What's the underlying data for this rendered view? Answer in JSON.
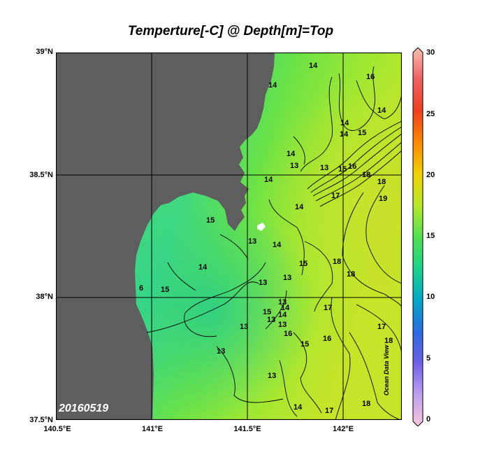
{
  "title": "Temperture[-C] @ Depth[m]=Top",
  "date_label": "20160519",
  "watermark": "Ocean Data View",
  "lat_ticks": [
    "39°N",
    "38.5°N",
    "38°N",
    "37.5°N"
  ],
  "lon_ticks": [
    "140.5°E",
    "141°E",
    "141.5°E",
    "142°E"
  ],
  "colorbar": {
    "ticks": [
      "30",
      "25",
      "20",
      "15",
      "10",
      "5",
      "0"
    ],
    "range": [
      0,
      30
    ],
    "colors": [
      "#f8c8dc",
      "#c0a0f0",
      "#7060e8",
      "#2a6ce0",
      "#00a8c8",
      "#1ed28a",
      "#50e050",
      "#b8e828",
      "#f0d000",
      "#ff8800",
      "#f04020",
      "#f06060",
      "#f8c0b0"
    ]
  },
  "contour_labels": [
    {
      "text": "14"
    },
    {
      "text": "16"
    },
    {
      "text": "14"
    },
    {
      "text": "15"
    },
    {
      "text": "14"
    },
    {
      "text": "14"
    },
    {
      "text": "14"
    },
    {
      "text": "13"
    },
    {
      "text": "14"
    },
    {
      "text": "14"
    },
    {
      "text": "13"
    },
    {
      "text": "15"
    },
    {
      "text": "16"
    },
    {
      "text": "18"
    },
    {
      "text": "18"
    },
    {
      "text": "19"
    },
    {
      "text": "17"
    },
    {
      "text": "15"
    },
    {
      "text": "14"
    },
    {
      "text": "13"
    },
    {
      "text": "14"
    },
    {
      "text": "13"
    },
    {
      "text": "15"
    },
    {
      "text": "14"
    },
    {
      "text": "15"
    },
    {
      "text": "6"
    },
    {
      "text": "18"
    },
    {
      "text": "18"
    },
    {
      "text": "13"
    },
    {
      "text": "13"
    },
    {
      "text": "14"
    },
    {
      "text": "13"
    },
    {
      "text": "15"
    },
    {
      "text": "13"
    },
    {
      "text": "17"
    },
    {
      "text": "14"
    },
    {
      "text": "16"
    },
    {
      "text": "16"
    },
    {
      "text": "15"
    },
    {
      "text": "17"
    },
    {
      "text": "13"
    },
    {
      "text": "18"
    },
    {
      "text": "13"
    },
    {
      "text": "13"
    },
    {
      "text": "14"
    },
    {
      "text": "17"
    },
    {
      "text": "18"
    }
  ]
}
